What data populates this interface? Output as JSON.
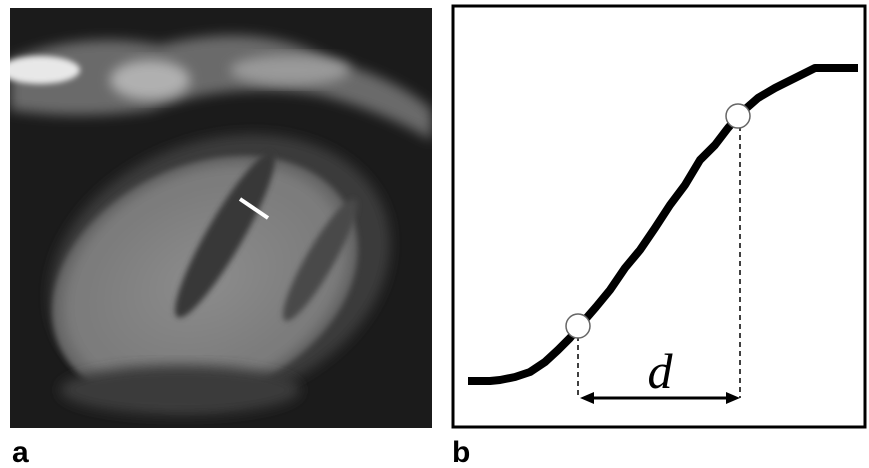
{
  "panels": [
    {
      "label": "a"
    },
    {
      "label": "b",
      "annotation": "d"
    }
  ]
}
